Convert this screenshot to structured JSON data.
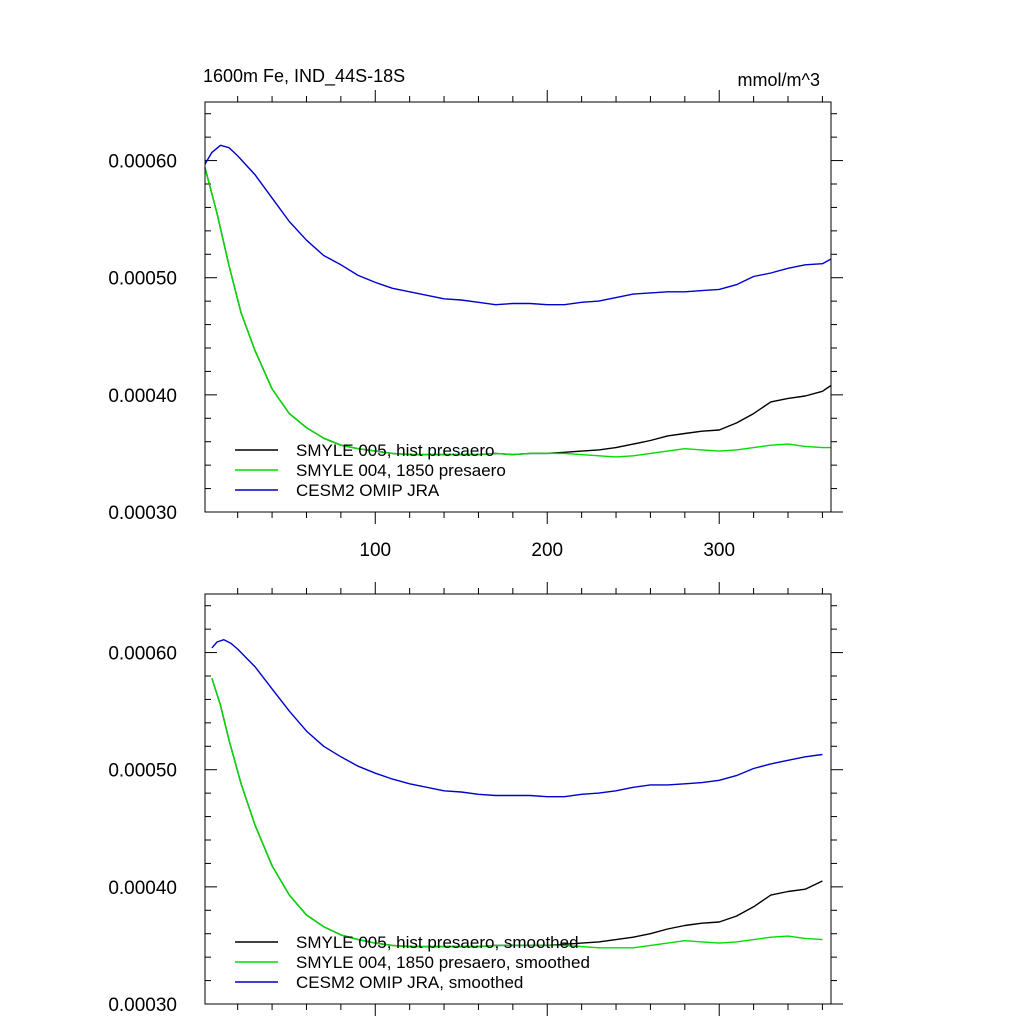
{
  "chart_data": [
    {
      "type": "line",
      "title": "1600m Fe, IND_44S-18S",
      "units": "mmol/m^3",
      "xlim": [
        1,
        365
      ],
      "ylim": [
        0.0003,
        0.00065
      ],
      "xticks": [
        100,
        200,
        300
      ],
      "xtick_labels": [
        "100",
        "200",
        "300"
      ],
      "yticks": [
        0.0003,
        0.0004,
        0.0005,
        0.0006
      ],
      "ytick_labels": [
        "0.00030",
        "0.00040",
        "0.00050",
        "0.00060"
      ],
      "legend_placement": "bottom-left",
      "grid": false,
      "series": [
        {
          "name": "SMYLE 005, hist presaero",
          "color": "#000000",
          "x": [
            1,
            8,
            15,
            22,
            30,
            40,
            50,
            60,
            70,
            80,
            90,
            100,
            110,
            120,
            130,
            140,
            150,
            160,
            170,
            180,
            190,
            200,
            210,
            220,
            230,
            240,
            250,
            260,
            270,
            280,
            290,
            300,
            310,
            320,
            330,
            340,
            350,
            360,
            365
          ],
          "y": [
            0.000594,
            0.000555,
            0.00051,
            0.00047,
            0.000438,
            0.000405,
            0.000384,
            0.000372,
            0.000363,
            0.000357,
            0.000354,
            0.000352,
            0.00035,
            0.000349,
            0.000349,
            0.000349,
            0.000349,
            0.000349,
            0.00035,
            0.000349,
            0.00035,
            0.00035,
            0.000351,
            0.000352,
            0.000353,
            0.000355,
            0.000358,
            0.000361,
            0.000365,
            0.000367,
            0.000369,
            0.00037,
            0.000376,
            0.000384,
            0.000394,
            0.000397,
            0.000399,
            0.000403,
            0.000408
          ]
        },
        {
          "name": "SMYLE 004, 1850 presaero",
          "color": "#00dd00",
          "x": [
            1,
            8,
            15,
            22,
            30,
            40,
            50,
            60,
            70,
            80,
            90,
            100,
            110,
            120,
            130,
            140,
            150,
            160,
            170,
            180,
            190,
            200,
            210,
            220,
            230,
            240,
            250,
            260,
            270,
            280,
            290,
            300,
            310,
            320,
            330,
            340,
            350,
            360,
            365
          ],
          "y": [
            0.000594,
            0.000555,
            0.00051,
            0.00047,
            0.000438,
            0.000405,
            0.000384,
            0.000372,
            0.000363,
            0.000357,
            0.000354,
            0.000352,
            0.00035,
            0.000349,
            0.000349,
            0.000349,
            0.000349,
            0.000349,
            0.00035,
            0.000349,
            0.00035,
            0.00035,
            0.00035,
            0.000349,
            0.000348,
            0.000347,
            0.000348,
            0.00035,
            0.000352,
            0.000354,
            0.000353,
            0.000352,
            0.000353,
            0.000355,
            0.000357,
            0.000358,
            0.000356,
            0.000355,
            0.000355
          ]
        },
        {
          "name": "CESM2 OMIP JRA",
          "color": "#0000cc",
          "x": [
            1,
            5,
            10,
            15,
            20,
            30,
            40,
            50,
            60,
            70,
            80,
            90,
            100,
            110,
            120,
            130,
            140,
            150,
            160,
            170,
            180,
            190,
            200,
            210,
            220,
            230,
            240,
            250,
            260,
            270,
            280,
            290,
            300,
            310,
            320,
            330,
            340,
            350,
            360,
            365
          ],
          "y": [
            0.000597,
            0.000607,
            0.000613,
            0.000611,
            0.000604,
            0.000588,
            0.000568,
            0.000548,
            0.000532,
            0.000519,
            0.000511,
            0.000502,
            0.000496,
            0.000491,
            0.000488,
            0.000485,
            0.000482,
            0.000481,
            0.000479,
            0.000477,
            0.000478,
            0.000478,
            0.000477,
            0.000477,
            0.000479,
            0.00048,
            0.000483,
            0.000486,
            0.000487,
            0.000488,
            0.000488,
            0.000489,
            0.00049,
            0.000494,
            0.000501,
            0.000504,
            0.000508,
            0.000511,
            0.000512,
            0.000516
          ]
        }
      ]
    },
    {
      "type": "line",
      "xlim": [
        1,
        365
      ],
      "ylim": [
        0.0003,
        0.00065
      ],
      "xticks": [
        100,
        200,
        300
      ],
      "xtick_labels": [],
      "yticks": [
        0.0003,
        0.0004,
        0.0005,
        0.0006
      ],
      "ytick_labels": [
        "0.00030",
        "0.00040",
        "0.00050",
        "0.00060"
      ],
      "legend_placement": "bottom-left",
      "grid": false,
      "series": [
        {
          "name": "SMYLE 005, hist presaero, smoothed",
          "color": "#000000",
          "x": [
            5,
            10,
            15,
            22,
            30,
            40,
            50,
            60,
            70,
            80,
            90,
            100,
            110,
            120,
            130,
            140,
            150,
            160,
            170,
            180,
            190,
            200,
            210,
            220,
            230,
            240,
            250,
            260,
            270,
            280,
            290,
            300,
            310,
            320,
            330,
            340,
            350,
            360
          ],
          "y": [
            0.000578,
            0.000555,
            0.000525,
            0.000488,
            0.000453,
            0.000418,
            0.000393,
            0.000376,
            0.000366,
            0.000359,
            0.000355,
            0.000352,
            0.00035,
            0.000349,
            0.000349,
            0.000349,
            0.000349,
            0.000349,
            0.00035,
            0.00035,
            0.00035,
            0.00035,
            0.000351,
            0.000352,
            0.000353,
            0.000355,
            0.000357,
            0.00036,
            0.000364,
            0.000367,
            0.000369,
            0.00037,
            0.000375,
            0.000383,
            0.000393,
            0.000396,
            0.000398,
            0.000405
          ]
        },
        {
          "name": "SMYLE 004, 1850 presaero, smoothed",
          "color": "#00dd00",
          "x": [
            5,
            10,
            15,
            22,
            30,
            40,
            50,
            60,
            70,
            80,
            90,
            100,
            110,
            120,
            130,
            140,
            150,
            160,
            170,
            180,
            190,
            200,
            210,
            220,
            230,
            240,
            250,
            260,
            270,
            280,
            290,
            300,
            310,
            320,
            330,
            340,
            350,
            360
          ],
          "y": [
            0.000578,
            0.000555,
            0.000525,
            0.000488,
            0.000453,
            0.000418,
            0.000393,
            0.000376,
            0.000366,
            0.000359,
            0.000355,
            0.000352,
            0.00035,
            0.000349,
            0.000349,
            0.000349,
            0.000349,
            0.000349,
            0.00035,
            0.00035,
            0.00035,
            0.00035,
            0.00035,
            0.000349,
            0.000348,
            0.000348,
            0.000348,
            0.00035,
            0.000352,
            0.000354,
            0.000353,
            0.000352,
            0.000353,
            0.000355,
            0.000357,
            0.000358,
            0.000356,
            0.000355
          ]
        },
        {
          "name": "CESM2 OMIP JRA, smoothed",
          "color": "#0000cc",
          "x": [
            5,
            8,
            12,
            16,
            20,
            30,
            40,
            50,
            60,
            70,
            80,
            90,
            100,
            110,
            120,
            130,
            140,
            150,
            160,
            170,
            180,
            190,
            200,
            210,
            220,
            230,
            240,
            250,
            260,
            270,
            280,
            290,
            300,
            310,
            320,
            330,
            340,
            350,
            360
          ],
          "y": [
            0.000604,
            0.000609,
            0.000611,
            0.000608,
            0.000603,
            0.000588,
            0.000569,
            0.00055,
            0.000533,
            0.00052,
            0.000511,
            0.000503,
            0.000497,
            0.000492,
            0.000488,
            0.000485,
            0.000482,
            0.000481,
            0.000479,
            0.000478,
            0.000478,
            0.000478,
            0.000477,
            0.000477,
            0.000479,
            0.00048,
            0.000482,
            0.000485,
            0.000487,
            0.000487,
            0.000488,
            0.000489,
            0.000491,
            0.000495,
            0.000501,
            0.000505,
            0.000508,
            0.000511,
            0.000513
          ]
        }
      ]
    }
  ]
}
